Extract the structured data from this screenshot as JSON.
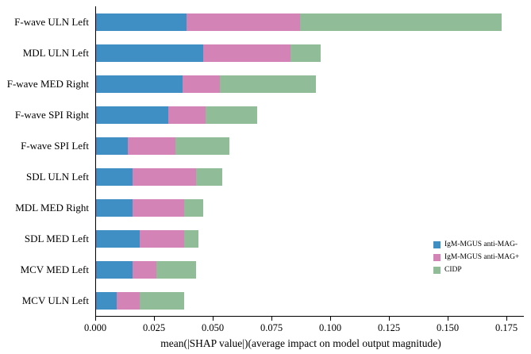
{
  "chart_data": {
    "type": "bar",
    "orientation": "horizontal",
    "stacked": true,
    "title": "",
    "xlabel": "mean(|SHAP value|)(average impact on model output magnitude)",
    "ylabel": "",
    "xlim": [
      0,
      0.175
    ],
    "grid": false,
    "legend_position": "lower right",
    "categories": [
      "F-wave ULN Left",
      "MDL ULN Left",
      "F-wave MED Right",
      "F-wave SPI Right",
      "F-wave SPI Left",
      "SDL ULN Left",
      "MDL MED Right",
      "SDL MED Left",
      "MCV MED Left",
      "MCV ULN Left"
    ],
    "series": [
      {
        "name": "IgM-MGUS anti-MAG-",
        "color": "#3f8fc5",
        "values": [
          0.039,
          0.046,
          0.037,
          0.031,
          0.014,
          0.016,
          0.016,
          0.019,
          0.016,
          0.009
        ]
      },
      {
        "name": "IgM-MGUS anti-MAG+",
        "color": "#d383b6",
        "values": [
          0.048,
          0.037,
          0.016,
          0.016,
          0.02,
          0.027,
          0.022,
          0.019,
          0.01,
          0.01
        ]
      },
      {
        "name": "CIDP",
        "color": "#90bd97",
        "values": [
          0.086,
          0.013,
          0.041,
          0.022,
          0.023,
          0.011,
          0.008,
          0.006,
          0.017,
          0.019
        ]
      }
    ],
    "xticks": [
      0.0,
      0.025,
      0.05,
      0.075,
      0.1,
      0.125,
      0.15,
      0.175
    ],
    "xtick_labels": [
      "0.000",
      "0.025",
      "0.050",
      "0.075",
      "0.100",
      "0.125",
      "0.150",
      "0.175"
    ]
  }
}
